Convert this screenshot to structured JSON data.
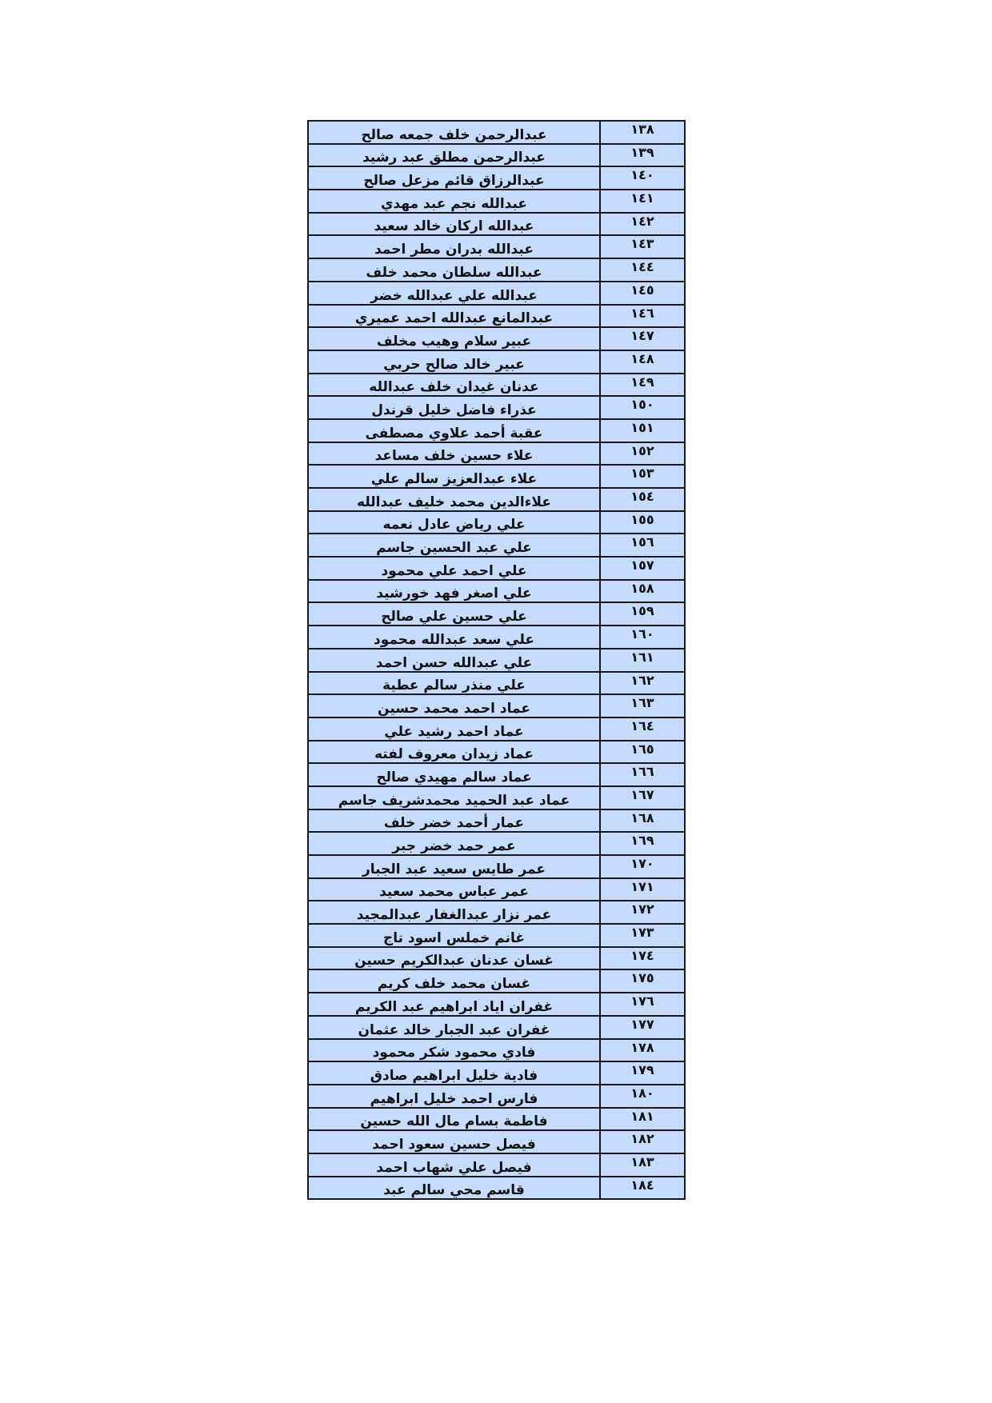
{
  "table": {
    "rows": [
      {
        "num": "١٣٨",
        "name": "عبدالرحمن خلف جمعه صالح"
      },
      {
        "num": "١٣٩",
        "name": "عبدالرحمن مطلق عبد رشيد"
      },
      {
        "num": "١٤٠",
        "name": "عبدالرزاق  قائم مزعل صالح"
      },
      {
        "num": "١٤١",
        "name": "عبدالله  نجم  عبد  مهدي"
      },
      {
        "num": "١٤٢",
        "name": "عبدالله اركان خالد سعيد"
      },
      {
        "num": "١٤٣",
        "name": "عبدالله بدران مطر احمد"
      },
      {
        "num": "١٤٤",
        "name": "عبدالله سلطان محمد خلف"
      },
      {
        "num": "١٤٥",
        "name": "عبدالله علي عبدالله خضر"
      },
      {
        "num": "١٤٦",
        "name": "عبدالمانع عبدالله احمد عميري"
      },
      {
        "num": "١٤٧",
        "name": "عبير  سلام  وهيب  مخلف"
      },
      {
        "num": "١٤٨",
        "name": "عبير خالد صالح حربي"
      },
      {
        "num": "١٤٩",
        "name": "عدنان غيدان خلف عبدالله"
      },
      {
        "num": "١٥٠",
        "name": "عذراء فاضل خليل قرندل"
      },
      {
        "num": "١٥١",
        "name": "عقبة أحمد علاوي مصطفى"
      },
      {
        "num": "١٥٢",
        "name": "علاء  حسين  خلف  مساعد"
      },
      {
        "num": "١٥٣",
        "name": "علاء عبدالعزيز سالم علي"
      },
      {
        "num": "١٥٤",
        "name": "علاءالدين محمد  خليف  عبدالله"
      },
      {
        "num": "١٥٥",
        "name": "علي  رياض  عادل  نعمه"
      },
      {
        "num": "١٥٦",
        "name": "علي  عبد  الحسين جاسم"
      },
      {
        "num": "١٥٧",
        "name": "علي احمد علي محمود"
      },
      {
        "num": "١٥٨",
        "name": "علي اصغر فهد خورشيد"
      },
      {
        "num": "١٥٩",
        "name": "علي حسين علي صالح"
      },
      {
        "num": "١٦٠",
        "name": "علي سعد عبدالله  محمود"
      },
      {
        "num": "١٦١",
        "name": "علي عبدالله حسن احمد"
      },
      {
        "num": "١٦٢",
        "name": "علي منذر سالم عطية"
      },
      {
        "num": "١٦٣",
        "name": "عماد  احمد  محمد  حسين"
      },
      {
        "num": "١٦٤",
        "name": "عماد احمد رشيد علي"
      },
      {
        "num": "١٦٥",
        "name": "عماد زيدان معروف لفته"
      },
      {
        "num": "١٦٦",
        "name": "عماد سالم مهيدي صالح"
      },
      {
        "num": "١٦٧",
        "name": "عماد عبد الحميد  محمدشريف جاسم"
      },
      {
        "num": "١٦٨",
        "name": "عمار أحمد خضر خلف"
      },
      {
        "num": "١٦٩",
        "name": "عمر  حمد خضر جبر"
      },
      {
        "num": "١٧٠",
        "name": "عمر طايس سعيد عبد الجبار"
      },
      {
        "num": "١٧١",
        "name": "عمر عباس محمد سعيد"
      },
      {
        "num": "١٧٢",
        "name": "عمر نزار عبدالغفار عبدالمجيد"
      },
      {
        "num": "١٧٣",
        "name": "غانم  خملس اسود تاج"
      },
      {
        "num": "١٧٤",
        "name": "غسان عدنان عبدالكريم حسين"
      },
      {
        "num": "١٧٥",
        "name": "غسان محمد خلف  كريم"
      },
      {
        "num": "١٧٦",
        "name": "غفران  اياد ابراهيم عبد الكريم"
      },
      {
        "num": "١٧٧",
        "name": "غفران  عبد الجبار  خالد  عثمان"
      },
      {
        "num": "١٧٨",
        "name": "فادي  محمود  شكر  محمود"
      },
      {
        "num": "١٧٩",
        "name": "فادية خليل ابراهيم صادق"
      },
      {
        "num": "١٨٠",
        "name": "فارس احمد خليل ابراهيم"
      },
      {
        "num": "١٨١",
        "name": "فاطمة بسام مال الله حسين"
      },
      {
        "num": "١٨٢",
        "name": "فيصل حسين سعود احمد"
      },
      {
        "num": "١٨٣",
        "name": "فيصل علي شهاب احمد"
      },
      {
        "num": "١٨٤",
        "name": "قاسم  محي  سالم عبد"
      }
    ]
  },
  "colors": {
    "cell_background": "#c6dcff",
    "border": "#1a1a1a"
  }
}
